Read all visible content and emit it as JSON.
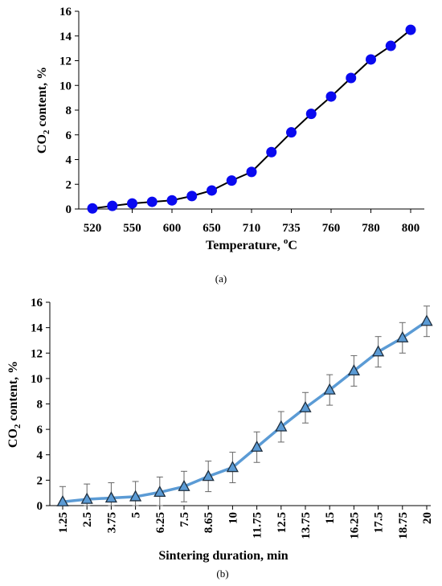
{
  "colors": {
    "panel_a_marker": "#0a0af0",
    "panel_a_line": "#000000",
    "panel_b_line": "#5b9bd5",
    "panel_b_marker": "#5b9bd5",
    "panel_b_marker_stroke": "#1f2f3f",
    "error_bar": "#666666"
  },
  "chart_data": [
    {
      "type": "line",
      "panel_label": "(a)",
      "xlabel": "Temperature, ",
      "xlabel_sup": "o",
      "xlabel_suffix": "C",
      "ylabel": "CO",
      "ylabel_sub": "2",
      "ylabel_suffix": " content, %",
      "ylim": [
        0,
        16
      ],
      "yticks": [
        0,
        2,
        4,
        6,
        8,
        10,
        12,
        14,
        16
      ],
      "xtick_labels": [
        "520",
        "550",
        "600",
        "650",
        "710",
        "735",
        "760",
        "780",
        "800"
      ],
      "x": [
        520,
        535,
        550,
        575,
        600,
        625,
        650,
        680,
        710,
        720,
        735,
        748,
        760,
        770,
        780,
        790,
        800
      ],
      "values": [
        0.05,
        0.25,
        0.45,
        0.58,
        0.7,
        1.05,
        1.5,
        2.3,
        3.0,
        4.6,
        6.2,
        7.7,
        9.1,
        10.6,
        12.1,
        13.2,
        14.5
      ],
      "marker": "circle"
    },
    {
      "type": "line",
      "panel_label": "(b)",
      "xlabel": "Sintering duration, min",
      "ylabel": "CO",
      "ylabel_sub": "2",
      "ylabel_suffix": " content, %",
      "ylim": [
        0,
        16
      ],
      "yticks": [
        0,
        2,
        4,
        6,
        8,
        10,
        12,
        14,
        16
      ],
      "categories": [
        "1.25",
        "2.5",
        "3.75",
        "5",
        "6.25",
        "7.5",
        "8.65",
        "10",
        "11.75",
        "12.5",
        "13.75",
        "15",
        "16.25",
        "17.5",
        "18.75",
        "20"
      ],
      "values": [
        0.3,
        0.5,
        0.6,
        0.7,
        1.05,
        1.5,
        2.3,
        3.0,
        4.6,
        6.2,
        7.7,
        9.1,
        10.6,
        12.1,
        13.2,
        14.5
      ],
      "error": [
        1.2,
        1.2,
        1.2,
        1.2,
        1.2,
        1.2,
        1.2,
        1.2,
        1.2,
        1.2,
        1.2,
        1.2,
        1.2,
        1.2,
        1.2,
        1.2
      ],
      "marker": "triangle"
    }
  ]
}
